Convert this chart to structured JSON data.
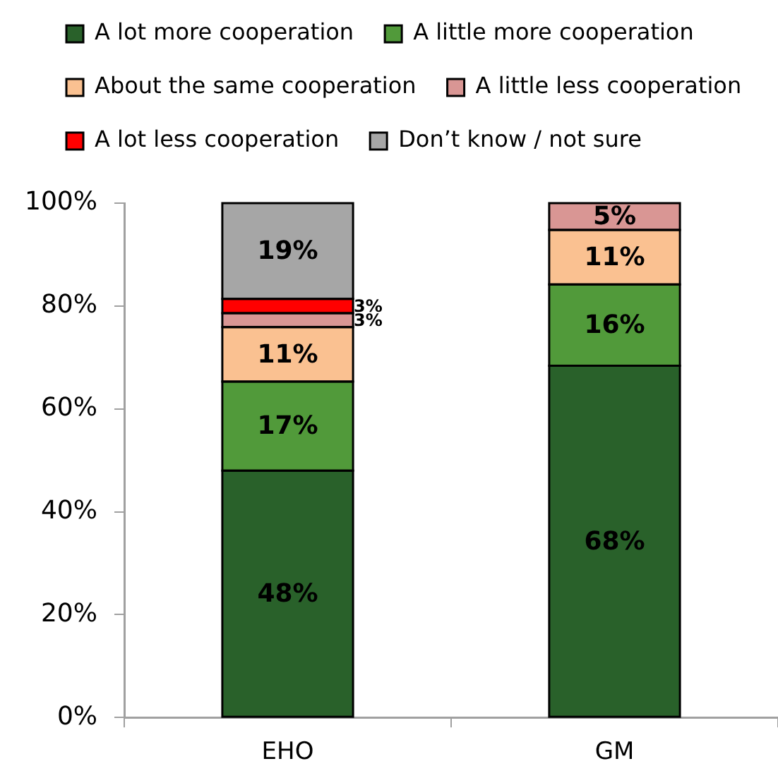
{
  "chart_data": {
    "type": "bar",
    "stacked": true,
    "categories": [
      "EHO",
      "GM"
    ],
    "series": [
      {
        "name": "A lot more cooperation",
        "color": "#29612a",
        "values": [
          48,
          68.4
        ],
        "value_labels": [
          "48%",
          "68%"
        ]
      },
      {
        "name": "A little more cooperation",
        "color": "#519a3a",
        "values": [
          17.3,
          15.8
        ],
        "value_labels": [
          "17%",
          "16%"
        ]
      },
      {
        "name": "About the same cooperation",
        "color": "#fac191",
        "values": [
          10.6,
          10.6
        ],
        "value_labels": [
          "11%",
          "11%"
        ]
      },
      {
        "name": "A little less cooperation",
        "color": "#d99694",
        "values": [
          2.7,
          5.2
        ],
        "value_labels": [
          "3%",
          "5%"
        ]
      },
      {
        "name": "A lot less cooperation",
        "color": "#ff0000",
        "values": [
          2.8,
          null
        ],
        "value_labels": [
          "3%",
          null
        ]
      },
      {
        "name": "Don’t know / not sure",
        "color": "#a6a6a6",
        "values": [
          18.6,
          null
        ],
        "value_labels": [
          "19%",
          null
        ]
      }
    ],
    "ylim": [
      0,
      100
    ],
    "yticks": [
      {
        "value": 0,
        "label": "0%"
      },
      {
        "value": 20,
        "label": "20%"
      },
      {
        "value": 40,
        "label": "40%"
      },
      {
        "value": 60,
        "label": "60%"
      },
      {
        "value": 80,
        "label": "80%"
      },
      {
        "value": 100,
        "label": "100%"
      }
    ],
    "legend": "top"
  }
}
